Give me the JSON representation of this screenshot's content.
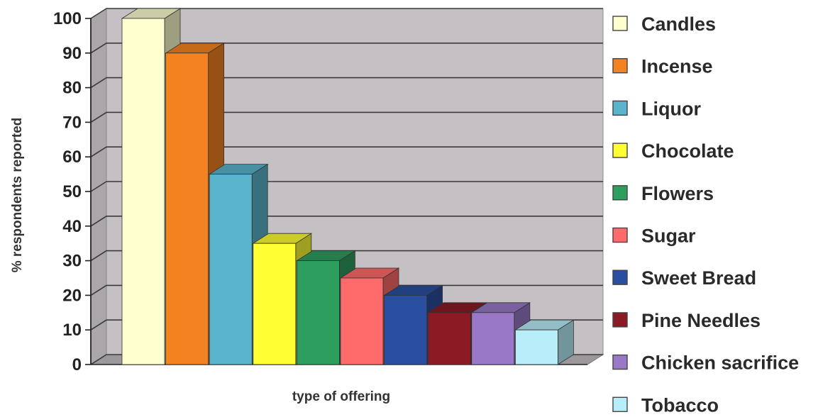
{
  "chart_data": {
    "type": "bar",
    "title": "",
    "xlabel": "type of offering",
    "ylabel": "% respondents reported",
    "ylim": [
      0,
      100
    ],
    "yticks": [
      0,
      10,
      20,
      30,
      40,
      50,
      60,
      70,
      80,
      90,
      100
    ],
    "grid": true,
    "legend_position": "right",
    "style": "3d-column",
    "series": [
      {
        "name": "Candles",
        "value": 100,
        "color": "#FFFFD0"
      },
      {
        "name": "Incense",
        "value": 90,
        "color": "#F58220"
      },
      {
        "name": "Liquor",
        "value": 55,
        "color": "#5AB4CC"
      },
      {
        "name": "Chocolate",
        "value": 35,
        "color": "#FFFF33"
      },
      {
        "name": "Flowers",
        "value": 30,
        "color": "#2E9E5E"
      },
      {
        "name": "Sugar",
        "value": 25,
        "color": "#FF6B6B"
      },
      {
        "name": "Sweet Bread",
        "value": 20,
        "color": "#2B4FA0"
      },
      {
        "name": "Pine Needles",
        "value": 15,
        "color": "#8B1A24"
      },
      {
        "name": "Chicken sacrifice",
        "value": 15,
        "color": "#9A78C8"
      },
      {
        "name": "Tobacco",
        "value": 10,
        "color": "#B8EEFA"
      }
    ]
  }
}
